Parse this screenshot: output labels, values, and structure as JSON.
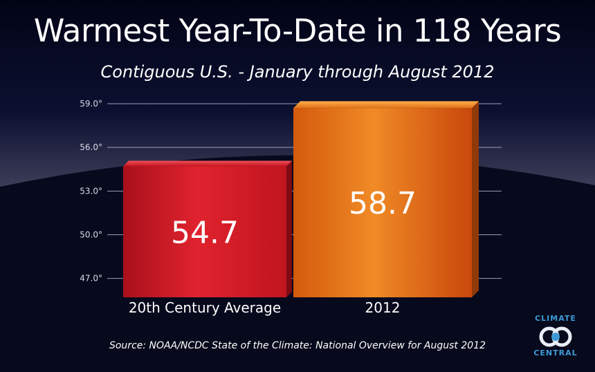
{
  "title": "Warmest Year-To-Date in 118 Years",
  "subtitle": "Contiguous U.S. - January through August 2012",
  "source": "Source: NOAA/NCDC State of the Climate: National Overview for August 2012",
  "logo": {
    "top_text": "CLIMATE",
    "bottom_text": "CENTRAL"
  },
  "colors": {
    "background": "#07091c",
    "bar_average": "#d8202c",
    "bar_2012": "#e8731a",
    "logo_blue": "#3e9ad6"
  },
  "chart_data": {
    "type": "bar",
    "categories": [
      "20th Century Average",
      "2012"
    ],
    "values": [
      54.7,
      58.7
    ],
    "value_labels": [
      "54.7",
      "58.7"
    ],
    "y_ticks": [
      "59.0°",
      "56.0°",
      "53.0°",
      "50.0°",
      "47.0°"
    ],
    "y_tick_values": [
      59.0,
      56.0,
      53.0,
      50.0,
      47.0
    ],
    "ylim": [
      45.7,
      59.0
    ],
    "grid": true
  }
}
